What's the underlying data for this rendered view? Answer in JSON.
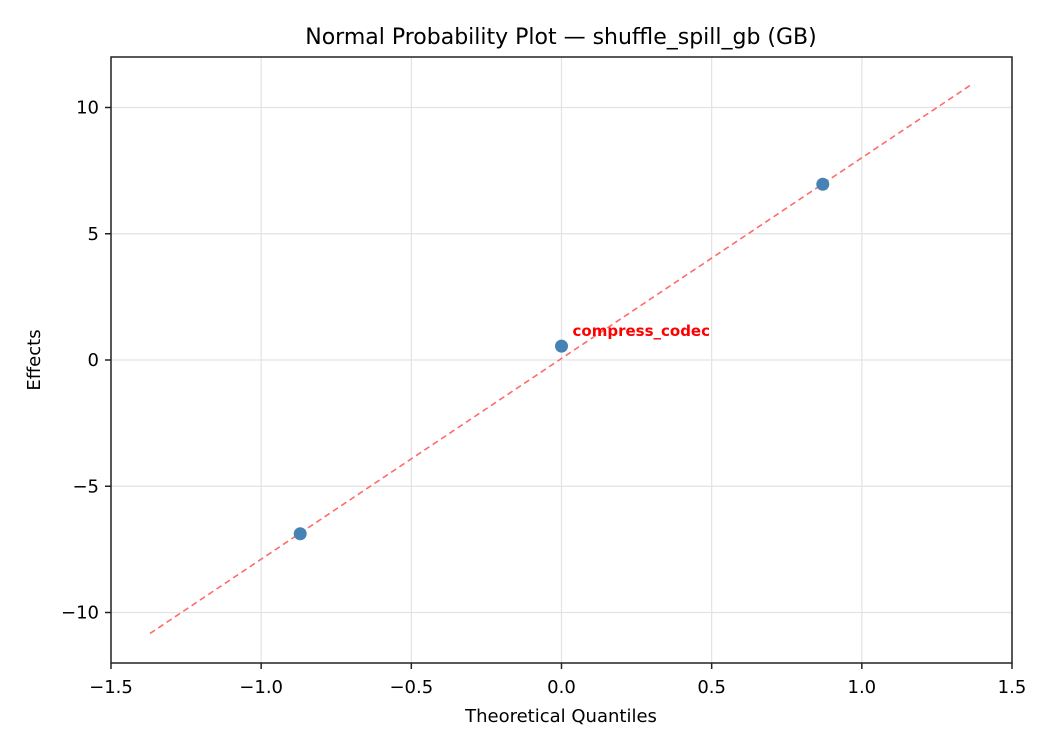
{
  "chart_data": {
    "type": "scatter",
    "title": "Normal Probability Plot — shuffle_spill_gb (GB)",
    "xlabel": "Theoretical Quantiles",
    "ylabel": "Effects",
    "xlim": [
      -1.5,
      1.5
    ],
    "ylim": [
      -12,
      12
    ],
    "xticks": [
      -1.5,
      -1.0,
      -0.5,
      0.0,
      0.5,
      1.0,
      1.5
    ],
    "xtick_labels": [
      "−1.5",
      "−1.0",
      "−0.5",
      "0.0",
      "0.5",
      "1.0",
      "1.5"
    ],
    "yticks": [
      -10,
      -5,
      0,
      5,
      10
    ],
    "ytick_labels": [
      "−10",
      "−5",
      "0",
      "5",
      "10"
    ],
    "grid": true,
    "legend": null,
    "series": [
      {
        "name": "effects",
        "kind": "scatter",
        "color": "#4682b4",
        "points": [
          {
            "x": -0.87,
            "y": -6.88
          },
          {
            "x": 0.0,
            "y": 0.55
          },
          {
            "x": 0.87,
            "y": 6.96
          }
        ]
      },
      {
        "name": "reference-line",
        "kind": "line",
        "style": "dashed",
        "color": "#ff6b6b",
        "points": [
          {
            "x": -1.37,
            "y": -10.83
          },
          {
            "x": 1.37,
            "y": 10.95
          }
        ]
      }
    ],
    "annotations": [
      {
        "text": "compress_codec",
        "x": 0.0,
        "y": 0.55,
        "color": "#ff0000",
        "bold": true
      }
    ]
  }
}
